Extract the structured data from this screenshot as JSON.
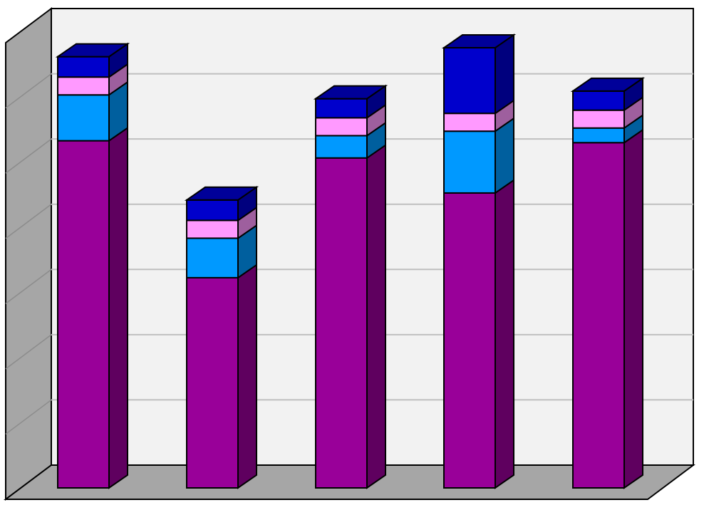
{
  "chart_data": {
    "type": "bar",
    "stacked": true,
    "three_d": true,
    "grid": true,
    "legend": "none",
    "title": "",
    "xlabel": "",
    "ylabel": "",
    "ylim": [
      0,
      7
    ],
    "categories": [
      "",
      "",
      "",
      "",
      ""
    ],
    "series": [
      {
        "color": "#990099",
        "values": [
          5.45,
          3.3,
          5.18,
          4.63,
          5.42
        ]
      },
      {
        "color": "#0099FF",
        "values": [
          0.72,
          0.62,
          0.35,
          0.97,
          0.23
        ]
      },
      {
        "color": "#FF99FF",
        "values": [
          0.28,
          0.28,
          0.28,
          0.28,
          0.28
        ]
      },
      {
        "color": "#0000CC",
        "values": [
          0.32,
          0.32,
          0.3,
          1.03,
          0.3
        ]
      }
    ]
  },
  "colors": {
    "wall": "#F2F2F2",
    "side_wall": "#A6A6A6",
    "floor": "#A6A6A6",
    "gridline": "#BFBFBF",
    "outline": "#000000"
  }
}
